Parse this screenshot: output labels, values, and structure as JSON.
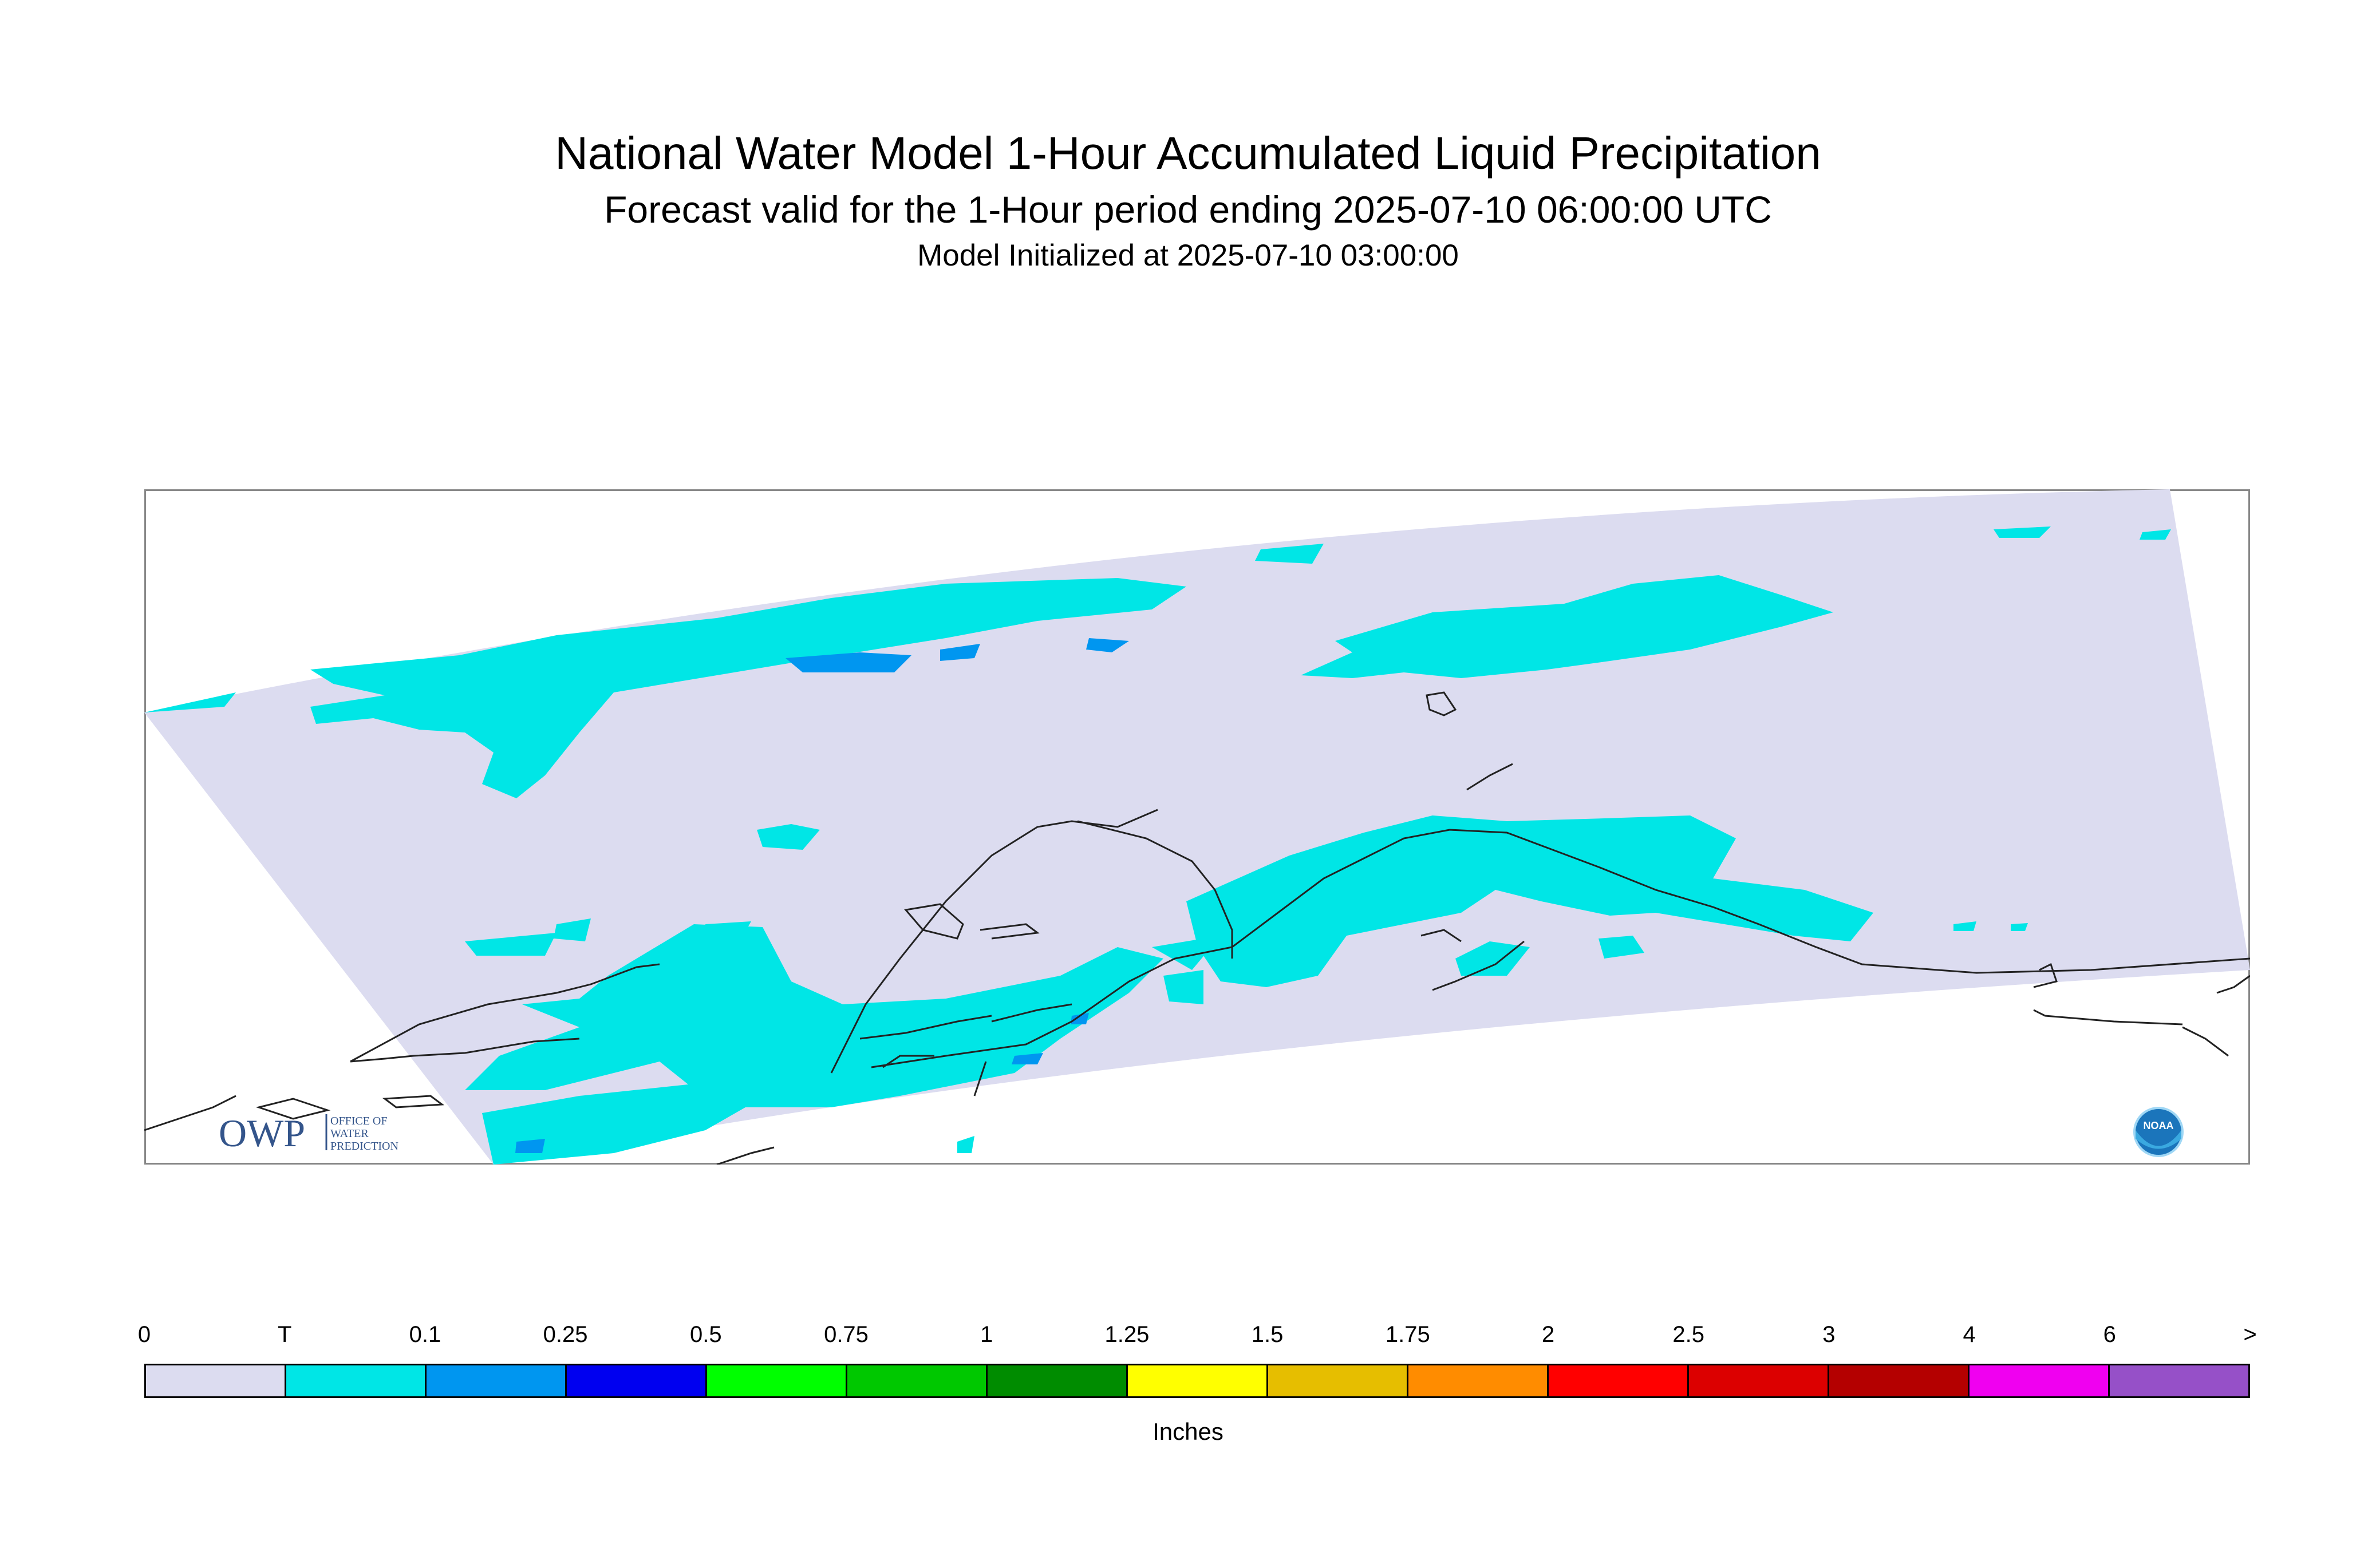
{
  "title": "National Water Model 1-Hour Accumulated Liquid Precipitation",
  "subtitle": "Forecast valid for the 1-Hour period ending 2025-07-10 06:00:00 UTC",
  "init_line": "Model Initialized at 2025-07-10 03:00:00",
  "logos": {
    "owp_text": "OWP",
    "owp_sub": [
      "OFFICE OF",
      "WATER",
      "PREDICTION"
    ],
    "noaa_text": "NOAA"
  },
  "legend": {
    "ticks": [
      "0",
      "T",
      "0.1",
      "0.25",
      "0.5",
      "0.75",
      "1",
      "1.25",
      "1.5",
      "1.75",
      "2",
      "2.5",
      "3",
      "4",
      "6",
      ">"
    ],
    "colors": [
      "#dcdcf0",
      "#00e6e6",
      "#0096f0",
      "#0000f0",
      "#00ff00",
      "#00c800",
      "#008c00",
      "#ffff00",
      "#e6be00",
      "#ff8c00",
      "#ff0000",
      "#dc0000",
      "#b40000",
      "#f000f0",
      "#9650c8"
    ],
    "units": "Inches"
  },
  "map_colors": {
    "background_domain": "#dcdcf0",
    "trace": "#00e6e6",
    "light": "#0096f0",
    "coast": "#222222",
    "frame": "#888888"
  }
}
